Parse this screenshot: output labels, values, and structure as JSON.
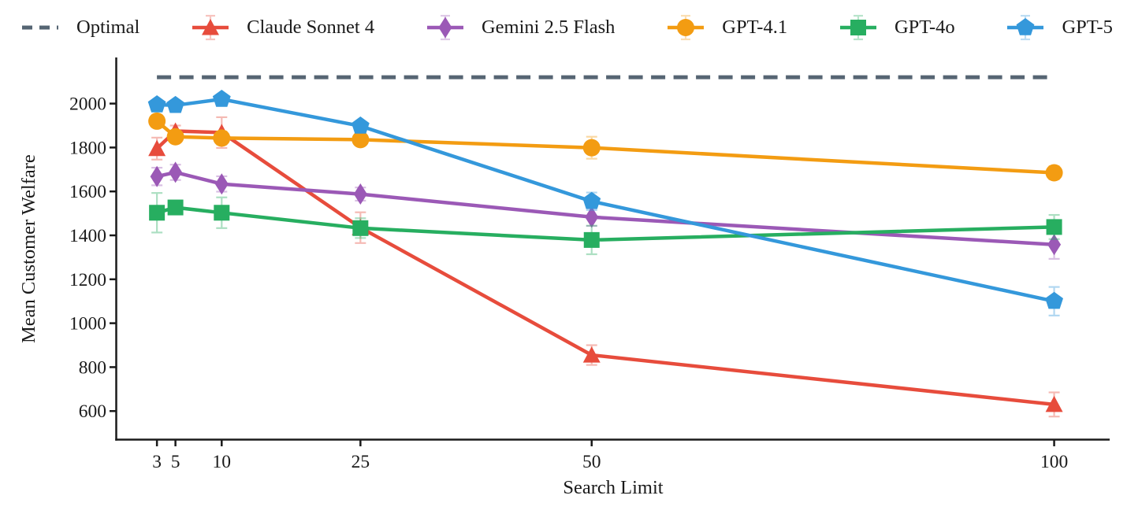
{
  "chart_data": {
    "type": "line",
    "title": "",
    "xlabel": "Search Limit",
    "ylabel": "Mean Customer Welfare",
    "x": [
      3,
      5,
      10,
      25,
      50,
      100
    ],
    "x_tick_labels": [
      "3",
      "5",
      "10",
      "25",
      "50",
      "100"
    ],
    "y_ticks": [
      600,
      800,
      1000,
      1200,
      1400,
      1600,
      1800,
      2000
    ],
    "xlim": [
      -1.4,
      106
    ],
    "ylim": [
      470,
      2210
    ],
    "x_scale": "linear",
    "grid": false,
    "legend_position": "top",
    "background": "#ffffff",
    "axis_color": "#1a1a1a",
    "error_bar_alpha": 0.38,
    "series": [
      {
        "name": "Optimal",
        "color": "#566573",
        "marker": "none",
        "line_style": "dashed",
        "values": [
          2120,
          2120,
          2120,
          2120,
          2120,
          2120
        ]
      },
      {
        "name": "Claude Sonnet 4",
        "color": "#e74c3c",
        "marker": "triangle-up",
        "line_style": "solid",
        "values": [
          1795,
          1875,
          1868,
          1435,
          855,
          630
        ],
        "errors": [
          50,
          25,
          70,
          70,
          45,
          55
        ]
      },
      {
        "name": "Gemini 2.5 Flash",
        "color": "#9b59b6",
        "marker": "thin-diamond",
        "line_style": "solid",
        "values": [
          1668,
          1687,
          1634,
          1588,
          1483,
          1358
        ],
        "errors": [
          40,
          35,
          35,
          30,
          40,
          65
        ]
      },
      {
        "name": "GPT-4.1",
        "color": "#f39c12",
        "marker": "circle",
        "line_style": "solid",
        "values": [
          1920,
          1849,
          1843,
          1836,
          1799,
          1685
        ],
        "errors": [
          20,
          20,
          30,
          20,
          50,
          30
        ]
      },
      {
        "name": "GPT-4o",
        "color": "#27ae60",
        "marker": "square",
        "line_style": "solid",
        "values": [
          1503,
          1527,
          1503,
          1433,
          1379,
          1438
        ],
        "errors": [
          90,
          25,
          70,
          45,
          65,
          55
        ]
      },
      {
        "name": "GPT-5",
        "color": "#3498db",
        "marker": "pentagon",
        "line_style": "solid",
        "values": [
          1995,
          1992,
          2020,
          1898,
          1555,
          1100
        ],
        "errors": [
          12,
          12,
          15,
          20,
          40,
          65
        ]
      }
    ]
  }
}
